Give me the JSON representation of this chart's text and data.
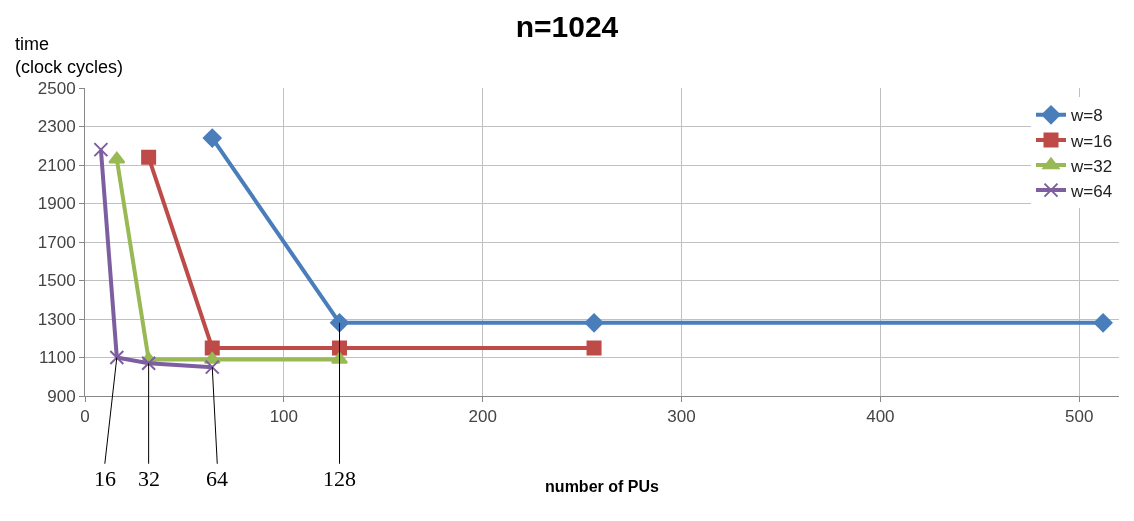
{
  "chart_data": {
    "type": "line",
    "title": "n=1024",
    "ylabel": "time\n(clock cycles)",
    "xlabel": "number of PUs",
    "xlim": [
      0,
      520
    ],
    "xticks": [
      0,
      100,
      200,
      300,
      400,
      500
    ],
    "ylim": [
      900,
      2500
    ],
    "yticks": [
      900,
      1100,
      1300,
      1500,
      1700,
      1900,
      2100,
      2300,
      2500
    ],
    "grid": true,
    "legend": "top right",
    "series": [
      {
        "name": "w=8",
        "color": "#4a7ebb",
        "marker": "diamond",
        "x": [
          64,
          128,
          256,
          512
        ],
        "values": [
          2240,
          1280,
          1280,
          1280
        ]
      },
      {
        "name": "w=16",
        "color": "#be4b48",
        "marker": "square",
        "x": [
          32,
          64,
          128,
          256
        ],
        "values": [
          2140,
          1150,
          1150,
          1150
        ]
      },
      {
        "name": "w=32",
        "color": "#98b954",
        "marker": "triangle",
        "x": [
          16,
          32,
          64,
          128
        ],
        "values": [
          2130,
          1090,
          1090,
          1090
        ]
      },
      {
        "name": "w=64",
        "color": "#7d5fa0",
        "marker": "cross",
        "x": [
          8,
          16,
          32,
          64
        ],
        "values": [
          2180,
          1100,
          1070,
          1050
        ]
      }
    ],
    "annotations": [
      {
        "text": "16",
        "x": 16,
        "y": 1100
      },
      {
        "text": "32",
        "x": 32,
        "y": 1070
      },
      {
        "text": "64",
        "x": 64,
        "y": 1050
      },
      {
        "text": "128",
        "x": 128,
        "y": 1280
      }
    ]
  }
}
